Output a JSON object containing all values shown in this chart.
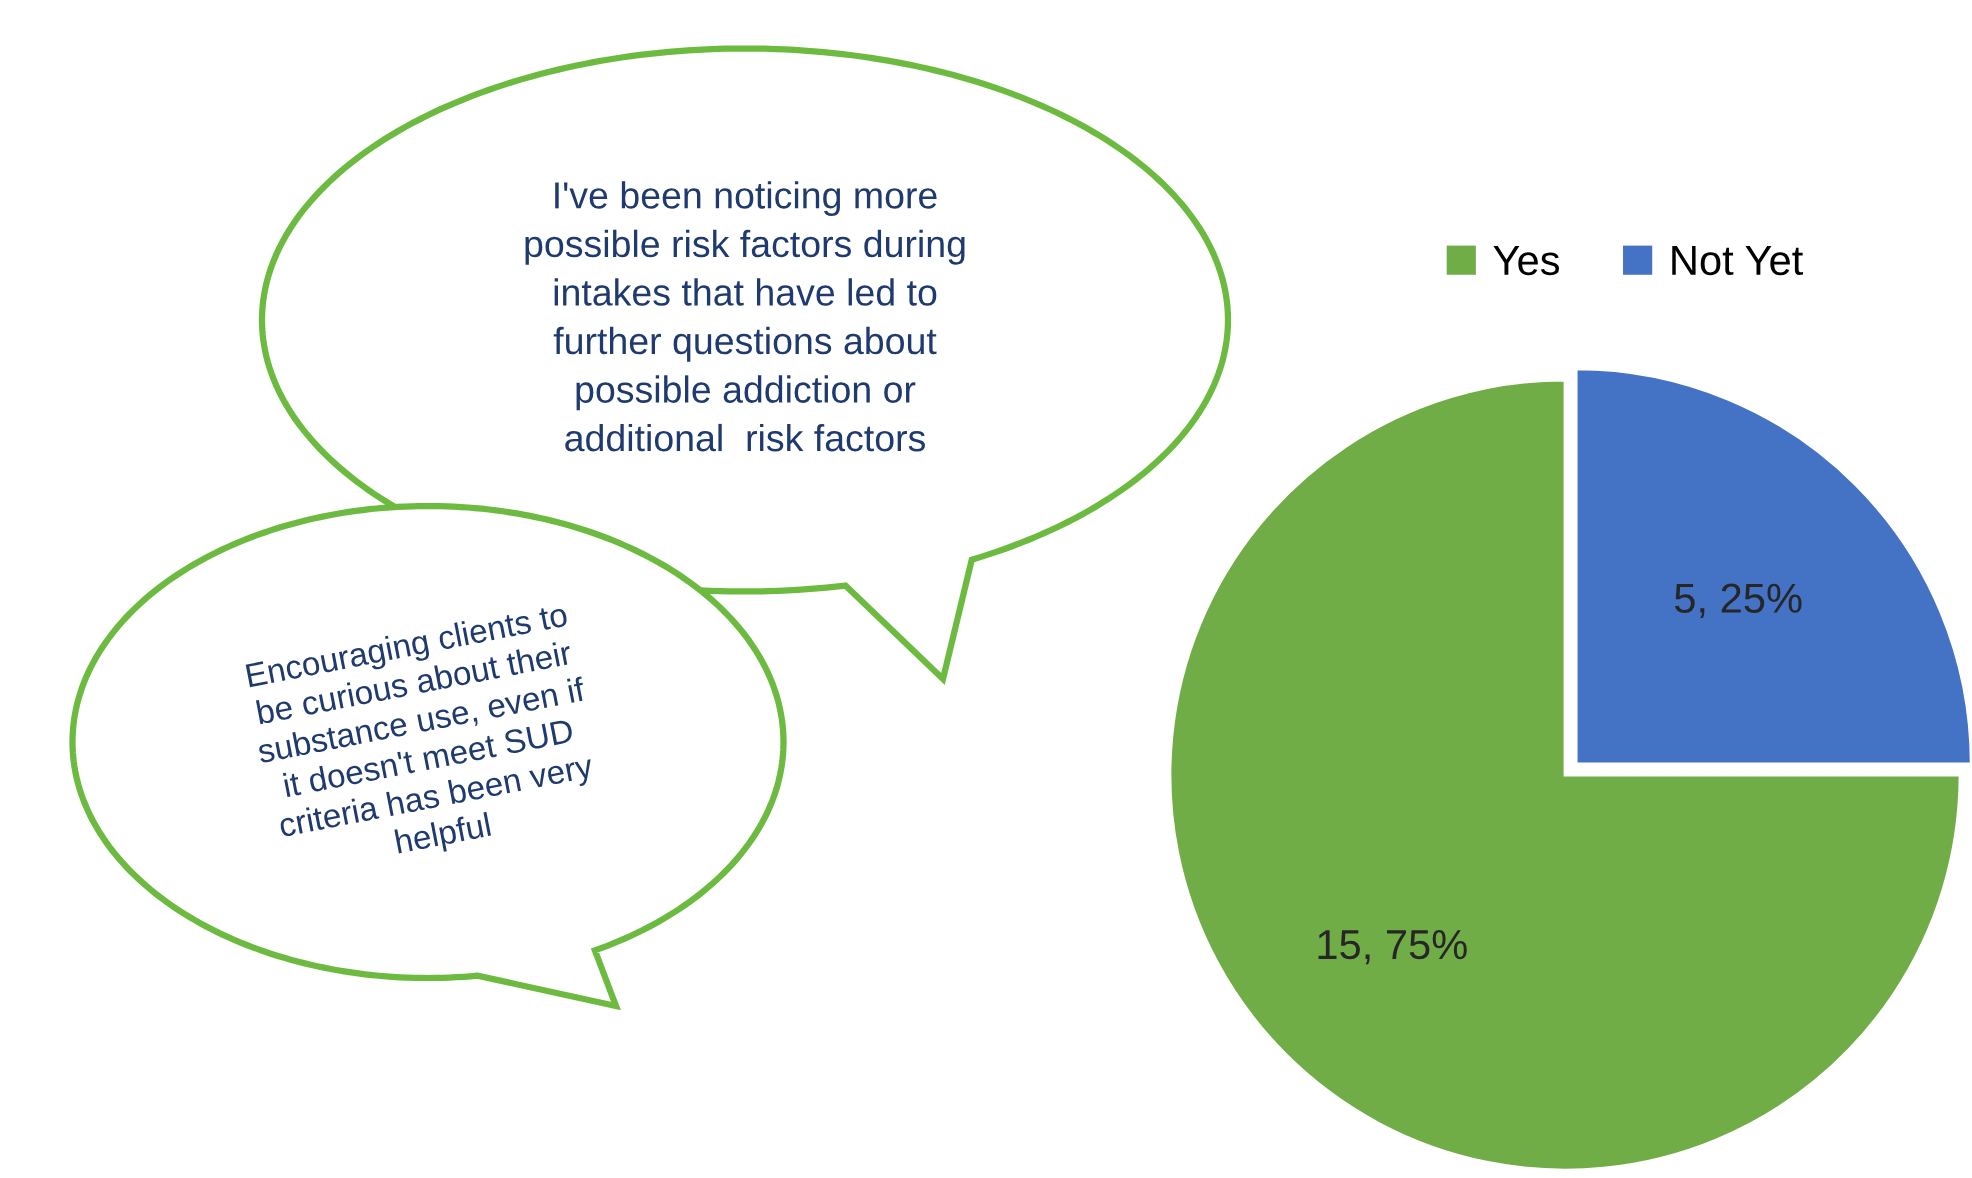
{
  "chart_data": {
    "type": "pie",
    "categories": [
      "Yes",
      "Not Yet"
    ],
    "values": [
      15,
      5
    ],
    "colors": [
      "#70ad47",
      "#4472c4"
    ],
    "value_labels": [
      "15, 75%",
      "5, 25%"
    ],
    "legend": "top right",
    "annotations": [
      "I've been noticing more\npossible risk factors during\nintakes that have led to\nfurther questions about\npossible addiction or\nadditional  risk factors",
      "Encouraging clients to\nbe curious about their\nsubstance use, even if\nit doesn't meet SUD\ncriteria has been very\nhelpful"
    ]
  }
}
